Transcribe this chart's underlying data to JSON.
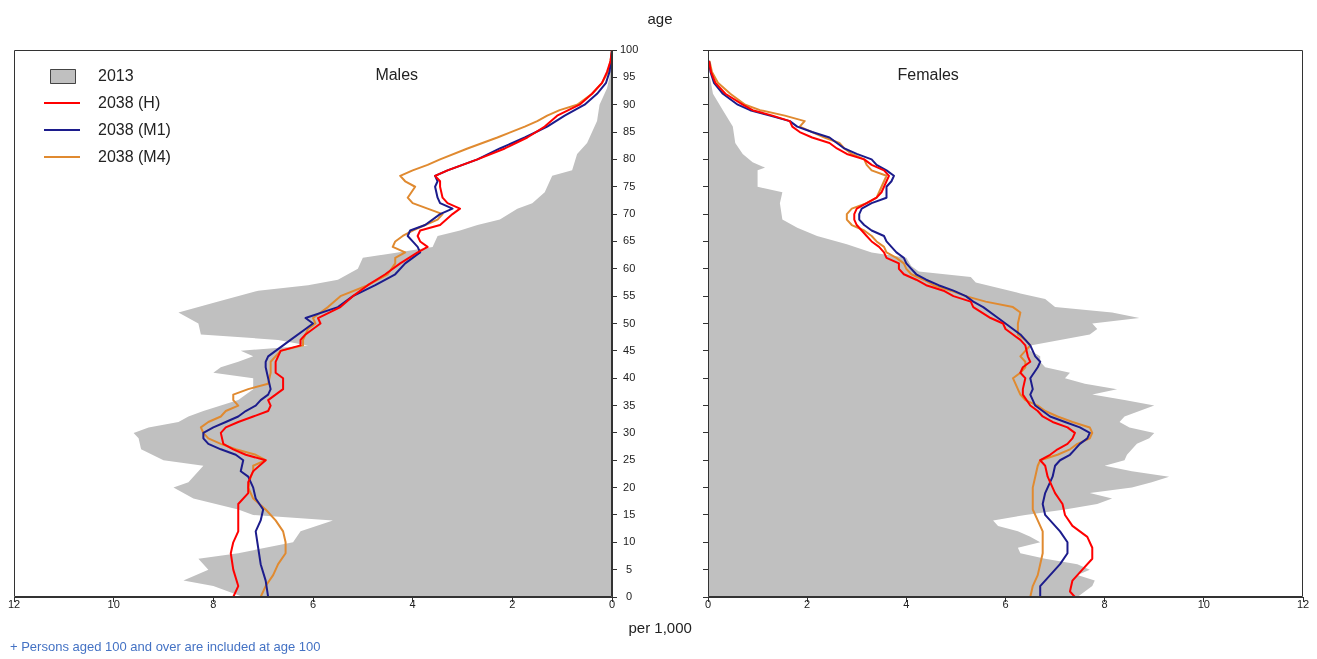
{
  "chart_data": [
    {
      "type": "line",
      "title": "Males",
      "ylabel": "age",
      "xlabel": "per 1,000",
      "orientation": "horizontal",
      "xlim": [
        12,
        0
      ],
      "xticks": [
        12,
        10,
        8,
        6,
        4,
        2,
        0
      ],
      "ylim": [
        0,
        100
      ],
      "yticks": [
        0,
        5,
        10,
        15,
        20,
        25,
        30,
        35,
        40,
        45,
        50,
        55,
        60,
        65,
        70,
        75,
        80,
        85,
        90,
        95,
        100
      ],
      "legend": "top left",
      "annotations": [
        "+ Persons aged 100 and over are included at age 100"
      ],
      "series": [
        {
          "name": "2013",
          "type": "area",
          "color": "#c0c0c0",
          "x": [
            0,
            2,
            3,
            5,
            7,
            8,
            10,
            12,
            14,
            15,
            16,
            18,
            20,
            21,
            23,
            24,
            25,
            27,
            29,
            30,
            31,
            32,
            33,
            34,
            35,
            36,
            38,
            40,
            41,
            42,
            43,
            44,
            45,
            46,
            47,
            48,
            50,
            52,
            54,
            56,
            57,
            58,
            60,
            62,
            63,
            64,
            66,
            67,
            68,
            69,
            71,
            72,
            74,
            77,
            78,
            81,
            83,
            87,
            90,
            93,
            95,
            100
          ],
          "values": [
            7.4,
            8.0,
            8.6,
            8.1,
            8.3,
            7.5,
            6.4,
            6.25,
            5.6,
            7.2,
            7.5,
            8.4,
            8.8,
            8.5,
            8.3,
            8.2,
            9.0,
            9.45,
            9.5,
            9.6,
            9.3,
            8.7,
            8.5,
            8.2,
            7.85,
            7.5,
            7.2,
            7.2,
            8.0,
            7.85,
            7.5,
            7.2,
            7.45,
            6.1,
            6.7,
            8.25,
            8.3,
            8.7,
            7.9,
            7.1,
            6.1,
            5.5,
            5.1,
            5.0,
            4.3,
            3.6,
            3.5,
            3.05,
            2.7,
            2.25,
            1.9,
            1.6,
            1.35,
            1.2,
            0.8,
            0.7,
            0.5,
            0.3,
            0.25,
            0.1,
            0.05,
            0
          ]
        },
        {
          "name": "2038 (H)",
          "color": "#ff0000",
          "x": [
            0,
            2,
            5,
            8,
            10,
            12,
            14,
            17,
            19,
            21,
            23,
            25,
            26,
            27,
            28,
            30,
            31,
            32,
            33,
            34,
            35,
            36,
            37,
            38,
            40,
            41,
            43,
            45,
            46,
            47,
            48,
            50,
            51,
            53,
            55,
            57,
            59,
            61,
            63,
            64,
            65,
            66,
            67,
            68,
            70,
            71,
            72,
            73,
            75,
            76,
            77,
            78,
            80,
            82,
            84,
            86,
            88,
            90,
            92,
            94,
            96,
            98,
            100
          ],
          "values": [
            7.6,
            7.5,
            7.6,
            7.65,
            7.6,
            7.5,
            7.5,
            7.5,
            7.3,
            7.3,
            7.2,
            6.95,
            7.35,
            7.6,
            7.8,
            7.85,
            7.75,
            7.5,
            7.2,
            6.9,
            6.85,
            6.9,
            6.75,
            6.6,
            6.6,
            6.75,
            6.75,
            6.65,
            6.25,
            6.25,
            6.15,
            5.85,
            5.9,
            5.45,
            5.2,
            4.9,
            4.55,
            4.25,
            3.9,
            3.7,
            3.85,
            3.9,
            3.85,
            3.45,
            3.2,
            3.05,
            3.3,
            3.4,
            3.45,
            3.45,
            3.55,
            3.3,
            2.7,
            2.15,
            1.7,
            1.35,
            1.1,
            0.65,
            0.4,
            0.2,
            0.1,
            0.03,
            0
          ]
        },
        {
          "name": "2038 (M1)",
          "color": "#1c1c8c",
          "x": [
            0,
            3,
            6,
            9,
            12,
            14,
            16,
            18,
            20,
            22,
            23,
            25,
            26,
            27,
            28,
            29,
            30,
            31,
            32,
            33,
            34,
            35,
            36,
            37,
            38,
            40,
            42,
            43,
            44,
            46,
            47,
            49,
            50,
            51,
            53,
            55,
            57,
            59,
            61,
            62,
            63,
            64,
            65,
            66,
            67,
            68,
            70,
            71,
            72,
            73,
            75,
            76,
            77,
            78,
            80,
            82,
            84,
            86,
            88,
            90,
            92,
            94,
            96,
            98,
            100
          ],
          "values": [
            6.9,
            6.95,
            7.05,
            7.1,
            7.15,
            7.05,
            7.0,
            7.15,
            7.2,
            7.3,
            7.45,
            7.4,
            7.55,
            7.85,
            8.1,
            8.2,
            8.2,
            8.0,
            7.75,
            7.5,
            7.35,
            7.15,
            7.05,
            6.9,
            6.85,
            6.9,
            6.95,
            6.95,
            6.9,
            6.6,
            6.45,
            6.15,
            6.0,
            6.15,
            5.5,
            5.2,
            4.75,
            4.35,
            4.15,
            4.0,
            3.85,
            3.9,
            4.0,
            4.1,
            4.05,
            3.75,
            3.45,
            3.2,
            3.45,
            3.5,
            3.55,
            3.5,
            3.55,
            3.3,
            2.7,
            2.25,
            1.75,
            1.3,
            0.95,
            0.55,
            0.3,
            0.12,
            0.05,
            0.02,
            0
          ]
        },
        {
          "name": "2038 (M4)",
          "color": "#e08a30",
          "x": [
            0,
            2,
            4,
            6,
            8,
            10,
            12,
            14,
            16,
            18,
            20,
            22,
            23,
            24,
            25,
            26,
            27,
            28,
            29,
            30,
            31,
            32,
            33,
            34,
            35,
            36,
            37,
            38,
            39,
            41,
            43,
            45,
            46,
            47,
            49,
            50,
            51,
            53,
            55,
            57,
            59,
            61,
            62,
            63,
            64,
            65,
            66,
            67,
            68,
            69,
            70,
            71,
            72,
            73,
            75,
            76,
            77,
            78,
            79,
            80,
            82,
            84,
            86,
            87,
            88,
            89,
            90,
            92,
            94,
            96,
            98,
            100
          ],
          "values": [
            7.05,
            6.95,
            6.8,
            6.7,
            6.55,
            6.55,
            6.6,
            6.75,
            6.95,
            7.2,
            7.3,
            7.25,
            7.2,
            7.2,
            6.95,
            7.15,
            7.55,
            7.85,
            8.1,
            8.2,
            8.25,
            8.1,
            7.85,
            7.75,
            7.5,
            7.6,
            7.6,
            7.3,
            6.9,
            6.85,
            6.85,
            6.65,
            6.2,
            6.2,
            6.1,
            5.95,
            6.0,
            5.7,
            5.45,
            4.9,
            4.5,
            4.35,
            4.35,
            4.15,
            4.4,
            4.35,
            4.2,
            4.0,
            3.75,
            3.5,
            3.4,
            3.7,
            4.0,
            4.1,
            3.95,
            4.15,
            4.25,
            4.0,
            3.7,
            3.45,
            2.9,
            2.3,
            1.75,
            1.5,
            1.3,
            1.05,
            0.7,
            0.4,
            0.2,
            0.08,
            0.03,
            0
          ]
        }
      ]
    },
    {
      "type": "line",
      "title": "Females",
      "orientation": "horizontal",
      "xlim": [
        0,
        12
      ],
      "xticks": [
        0,
        2,
        4,
        6,
        8,
        10,
        12
      ],
      "ylim": [
        0,
        100
      ],
      "yticks": [
        0,
        5,
        10,
        15,
        20,
        25,
        30,
        35,
        40,
        45,
        50,
        55,
        60,
        65,
        70,
        75,
        80,
        85,
        90,
        95,
        100
      ],
      "tick_labels": "x",
      "series": [
        {
          "type": "area",
          "color": "#c0c0c0",
          "x": [
            0,
            2,
            3,
            4,
            5,
            6,
            7,
            8,
            9,
            10,
            11,
            12,
            13,
            14,
            15,
            16,
            17,
            18,
            19,
            20,
            21,
            22,
            23,
            24,
            25,
            26,
            27,
            28,
            29,
            30,
            31,
            32,
            33,
            34,
            35,
            36,
            37,
            38,
            39,
            40,
            41,
            42,
            43,
            44,
            45,
            46,
            47,
            48,
            49,
            50,
            51,
            52,
            53,
            54.5,
            55.5,
            57.5,
            58.5,
            59.5,
            60.5,
            62,
            63,
            64.5,
            66,
            67.5,
            69,
            72,
            74,
            75,
            78,
            78.5,
            79.5,
            81,
            83,
            86,
            89,
            92,
            94.5,
            96,
            100
          ],
          "values": [
            7.45,
            7.75,
            7.8,
            7.45,
            7.7,
            7.45,
            6.8,
            6.3,
            6.25,
            6.7,
            6.5,
            6.25,
            5.85,
            5.75,
            6.4,
            7.2,
            7.85,
            8.15,
            7.7,
            8.55,
            8.95,
            9.3,
            8.55,
            8.0,
            8.4,
            8.45,
            8.55,
            8.65,
            8.9,
            9.0,
            8.5,
            8.3,
            8.4,
            8.7,
            9.0,
            8.4,
            7.75,
            8.25,
            7.6,
            7.2,
            7.3,
            6.8,
            6.7,
            6.7,
            6.5,
            6.5,
            7.1,
            7.7,
            7.85,
            7.75,
            8.7,
            8.15,
            7.0,
            6.8,
            6.3,
            5.4,
            5.3,
            4.25,
            4.1,
            4.0,
            3.3,
            2.8,
            2.2,
            1.8,
            1.5,
            1.45,
            1.5,
            1.0,
            1.0,
            1.15,
            0.9,
            0.7,
            0.55,
            0.5,
            0.3,
            0.1,
            0.05,
            0,
            0
          ]
        },
        {
          "color": "#ff0000",
          "x": [
            0,
            1,
            3,
            5,
            7,
            9,
            11,
            13,
            15,
            17,
            19,
            21,
            22,
            24,
            25,
            26,
            27,
            28,
            29,
            30,
            31,
            32,
            33,
            34,
            35,
            37,
            38,
            40,
            41,
            42,
            43,
            44,
            46,
            47,
            48,
            49,
            50,
            51,
            53,
            54,
            55,
            56,
            57,
            58,
            59,
            60,
            61,
            62,
            63,
            64,
            65,
            66,
            67,
            68,
            69,
            70,
            71,
            72,
            73,
            74,
            75,
            76,
            77,
            78,
            79,
            80,
            81,
            82,
            83,
            84,
            85,
            86,
            87,
            88,
            89,
            90,
            92,
            94,
            96,
            98
          ],
          "values": [
            7.4,
            7.3,
            7.35,
            7.55,
            7.75,
            7.75,
            7.65,
            7.35,
            7.2,
            7.15,
            7.0,
            6.9,
            6.85,
            6.8,
            6.7,
            6.9,
            7.05,
            7.25,
            7.35,
            7.4,
            7.25,
            6.95,
            6.75,
            6.65,
            6.5,
            6.35,
            6.35,
            6.4,
            6.3,
            6.35,
            6.5,
            6.45,
            6.4,
            6.3,
            6.15,
            6.0,
            5.95,
            5.7,
            5.35,
            5.3,
            4.95,
            4.75,
            4.4,
            4.2,
            3.95,
            3.85,
            3.85,
            3.6,
            3.55,
            3.45,
            3.3,
            3.2,
            3.1,
            3.0,
            2.95,
            2.95,
            3.0,
            3.2,
            3.4,
            3.5,
            3.55,
            3.6,
            3.65,
            3.55,
            3.3,
            3.15,
            2.8,
            2.6,
            2.45,
            2.1,
            1.85,
            1.7,
            1.65,
            1.3,
            0.9,
            0.7,
            0.35,
            0.15,
            0.06,
            0.02
          ]
        },
        {
          "color": "#1c1c8c",
          "x": [
            0,
            2,
            4,
            6,
            8,
            10,
            12,
            14,
            15,
            17,
            19,
            21,
            22,
            24,
            25,
            26,
            27,
            28,
            29,
            30,
            31,
            32,
            33,
            34,
            35,
            37,
            38,
            40,
            42,
            43,
            44,
            46,
            47,
            48,
            49,
            50,
            51,
            53,
            54,
            55,
            56,
            57,
            58,
            59,
            60,
            61,
            62,
            63,
            64,
            65,
            66,
            67,
            68,
            69,
            70,
            71,
            72,
            73,
            74,
            75,
            76,
            77,
            78,
            79,
            80,
            81,
            82,
            83,
            84,
            85,
            86,
            87,
            88,
            89,
            90,
            92,
            94,
            96,
            98
          ],
          "values": [
            6.7,
            6.7,
            6.9,
            7.1,
            7.25,
            7.25,
            7.1,
            6.9,
            6.8,
            6.75,
            6.8,
            6.9,
            6.95,
            7.0,
            7.1,
            7.3,
            7.4,
            7.5,
            7.65,
            7.7,
            7.5,
            7.2,
            6.9,
            6.75,
            6.6,
            6.5,
            6.55,
            6.5,
            6.65,
            6.7,
            6.6,
            6.5,
            6.4,
            6.3,
            6.15,
            6.0,
            5.85,
            5.55,
            5.35,
            5.2,
            4.95,
            4.65,
            4.4,
            4.2,
            4.1,
            4.0,
            3.95,
            3.8,
            3.7,
            3.6,
            3.55,
            3.3,
            3.15,
            3.05,
            3.05,
            3.1,
            3.3,
            3.6,
            3.6,
            3.6,
            3.7,
            3.75,
            3.6,
            3.4,
            3.3,
            3.0,
            2.75,
            2.6,
            2.45,
            2.1,
            1.8,
            1.65,
            1.25,
            0.85,
            0.6,
            0.3,
            0.12,
            0.05,
            0.02
          ]
        },
        {
          "color": "#e08a30",
          "x": [
            0,
            2,
            4,
            6,
            8,
            10,
            12,
            14,
            16,
            18,
            20,
            22,
            24,
            25,
            26,
            27,
            28,
            29,
            30,
            31,
            32,
            33,
            34,
            35,
            36,
            37,
            39,
            40,
            41,
            42,
            43,
            44,
            45,
            46,
            47,
            48,
            50,
            52,
            53,
            54,
            55,
            56,
            57,
            58,
            59,
            60,
            61,
            62,
            63,
            64,
            65,
            66,
            67,
            68,
            69,
            70,
            71,
            72,
            73,
            74,
            75,
            76,
            77,
            78,
            79,
            80,
            81,
            82,
            83,
            84,
            85,
            86,
            87,
            88,
            89,
            90,
            92,
            94,
            96,
            98
          ],
          "values": [
            6.5,
            6.55,
            6.65,
            6.7,
            6.75,
            6.75,
            6.75,
            6.65,
            6.55,
            6.55,
            6.55,
            6.6,
            6.65,
            6.7,
            7.05,
            7.3,
            7.45,
            7.7,
            7.75,
            7.7,
            7.35,
            7.05,
            6.8,
            6.65,
            6.4,
            6.3,
            6.2,
            6.15,
            6.3,
            6.4,
            6.4,
            6.3,
            6.4,
            6.5,
            6.4,
            6.25,
            6.25,
            6.3,
            6.15,
            5.6,
            5.2,
            4.9,
            4.55,
            4.35,
            4.1,
            4.0,
            3.95,
            3.8,
            3.6,
            3.55,
            3.4,
            3.3,
            3.15,
            2.9,
            2.8,
            2.8,
            2.9,
            3.2,
            3.4,
            3.45,
            3.5,
            3.55,
            3.6,
            3.3,
            3.2,
            3.15,
            2.9,
            2.75,
            2.65,
            2.35,
            2.1,
            1.85,
            1.95,
            1.55,
            1.05,
            0.75,
            0.45,
            0.2,
            0.08,
            0.03
          ]
        }
      ]
    }
  ]
}
